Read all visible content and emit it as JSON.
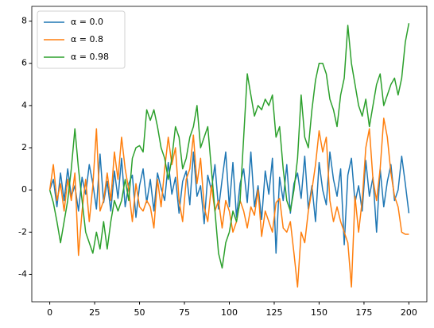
{
  "chart_data": {
    "type": "line",
    "x": [
      0,
      2,
      4,
      6,
      8,
      10,
      12,
      14,
      16,
      18,
      20,
      22,
      24,
      26,
      28,
      30,
      32,
      34,
      36,
      38,
      40,
      42,
      44,
      46,
      48,
      50,
      52,
      54,
      56,
      58,
      60,
      62,
      64,
      66,
      68,
      70,
      72,
      74,
      76,
      78,
      80,
      82,
      84,
      86,
      88,
      90,
      92,
      94,
      96,
      98,
      100,
      102,
      104,
      106,
      108,
      110,
      112,
      114,
      116,
      118,
      120,
      122,
      124,
      126,
      128,
      130,
      132,
      134,
      136,
      138,
      140,
      142,
      144,
      146,
      148,
      150,
      152,
      154,
      156,
      158,
      160,
      162,
      164,
      166,
      168,
      170,
      172,
      174,
      176,
      178,
      180,
      182,
      184,
      186,
      188,
      190,
      192,
      194,
      196,
      198,
      200
    ],
    "series": [
      {
        "name": "α = 0.0",
        "color": "#1f77b4",
        "values": [
          0,
          0.5,
          -0.8,
          0.8,
          -0.5,
          1.0,
          -0.3,
          0.2,
          -1.0,
          0.6,
          -0.2,
          1.2,
          0.3,
          -0.9,
          1.7,
          -0.6,
          0.4,
          -1.0,
          0.9,
          -0.4,
          1.5,
          -0.8,
          0.3,
          0.7,
          -1.3,
          0.2,
          1.0,
          -0.6,
          0.5,
          -1.0,
          0.8,
          0.1,
          -0.5,
          1.3,
          -0.2,
          0.6,
          -1.1,
          0.4,
          0.9,
          -0.7,
          1.8,
          -0.3,
          0.2,
          -1.6,
          0.7,
          0.0,
          1.2,
          -0.9,
          0.5,
          1.8,
          -0.8,
          1.3,
          -1.3,
          0.3,
          1.0,
          -0.6,
          1.8,
          -0.8,
          0.2,
          -1.4,
          0.9,
          -0.2,
          1.5,
          -3.0,
          0.6,
          -0.5,
          1.2,
          -1.1,
          0.3,
          0.8,
          -0.4,
          1.6,
          -0.9,
          0.2,
          -1.5,
          1.3,
          0.0,
          -0.7,
          1.8,
          0.5,
          -0.3,
          1.0,
          -2.6,
          0.7,
          1.5,
          -0.6,
          0.2,
          -1.0,
          1.4,
          -0.3,
          0.6,
          -2.0,
          1.0,
          -0.8,
          0.4,
          1.2,
          -0.5,
          0.0,
          1.6,
          0.3,
          -1.1
        ]
      },
      {
        "name": "α = 0.8",
        "color": "#ff7f0e",
        "values": [
          0,
          1.2,
          -0.5,
          0.3,
          -1.0,
          0.5,
          -0.5,
          0.8,
          -3.1,
          -1.0,
          0.5,
          -1.5,
          0.2,
          2.9,
          -1.0,
          -0.5,
          0.8,
          -0.5,
          1.8,
          0.5,
          2.5,
          1.0,
          0.0,
          -1.5,
          0.3,
          -0.8,
          -1.0,
          -0.5,
          -0.8,
          -1.8,
          0.5,
          -0.8,
          1.0,
          2.5,
          1.2,
          2.0,
          -0.5,
          -1.5,
          0.5,
          1.0,
          2.6,
          0.3,
          1.5,
          -0.8,
          -1.5,
          0.2,
          -1.0,
          -0.5,
          -1.8,
          -0.5,
          -1.0,
          -2.0,
          -1.5,
          -0.5,
          -1.0,
          -1.8,
          -0.8,
          -1.2,
          0.0,
          -2.2,
          -1.0,
          -1.5,
          -2.0,
          -0.6,
          -0.4,
          -1.8,
          -2.0,
          -1.5,
          -3.0,
          -4.6,
          -2.0,
          -2.5,
          -1.0,
          0.0,
          1.2,
          2.8,
          1.8,
          2.5,
          -0.5,
          -1.5,
          -0.8,
          -1.5,
          -2.0,
          -2.5,
          -4.6,
          -0.3,
          -2.0,
          -0.5,
          2.0,
          2.9,
          0.5,
          -0.5,
          1.0,
          3.4,
          2.5,
          0.8,
          -0.3,
          -0.8,
          -2.0,
          -2.1,
          -2.1
        ]
      },
      {
        "name": "α = 0.98",
        "color": "#2ca02c",
        "values": [
          0,
          -0.6,
          -1.5,
          -2.5,
          -1.5,
          -0.5,
          1.0,
          2.9,
          1.0,
          -0.5,
          -2.0,
          -2.5,
          -3.0,
          -2.0,
          -2.8,
          -1.5,
          -2.8,
          -1.5,
          -0.5,
          -1.0,
          -0.5,
          0.5,
          -0.5,
          1.5,
          2.0,
          2.1,
          1.8,
          3.8,
          3.3,
          3.8,
          3.0,
          2.0,
          1.5,
          0.5,
          1.5,
          3.0,
          2.5,
          1.0,
          1.5,
          2.5,
          3.0,
          4.0,
          2.0,
          2.5,
          3.0,
          1.0,
          -1.0,
          -3.0,
          -3.7,
          -2.5,
          -2.0,
          -1.0,
          -1.5,
          -0.5,
          2.5,
          5.5,
          4.5,
          3.5,
          4.0,
          3.8,
          4.3,
          4.0,
          4.5,
          2.5,
          3.0,
          1.0,
          -0.5,
          -1.0,
          0.0,
          1.5,
          4.5,
          2.5,
          2.0,
          3.8,
          5.2,
          6.0,
          6.0,
          5.5,
          4.3,
          3.8,
          3.0,
          4.5,
          5.3,
          7.8,
          6.0,
          5.0,
          4.0,
          3.5,
          4.3,
          3.0,
          4.0,
          5.0,
          5.5,
          4.0,
          4.5,
          5.0,
          5.3,
          4.5,
          5.3,
          7.0,
          7.9
        ]
      }
    ],
    "xlim": [
      -10,
      210
    ],
    "ylim": [
      -5.3,
      8.7
    ],
    "xticks": [
      0,
      25,
      50,
      75,
      100,
      125,
      150,
      175,
      200
    ],
    "yticks": [
      -4,
      -2,
      0,
      2,
      4,
      6,
      8
    ],
    "grid": false,
    "legend": "upper-left"
  }
}
